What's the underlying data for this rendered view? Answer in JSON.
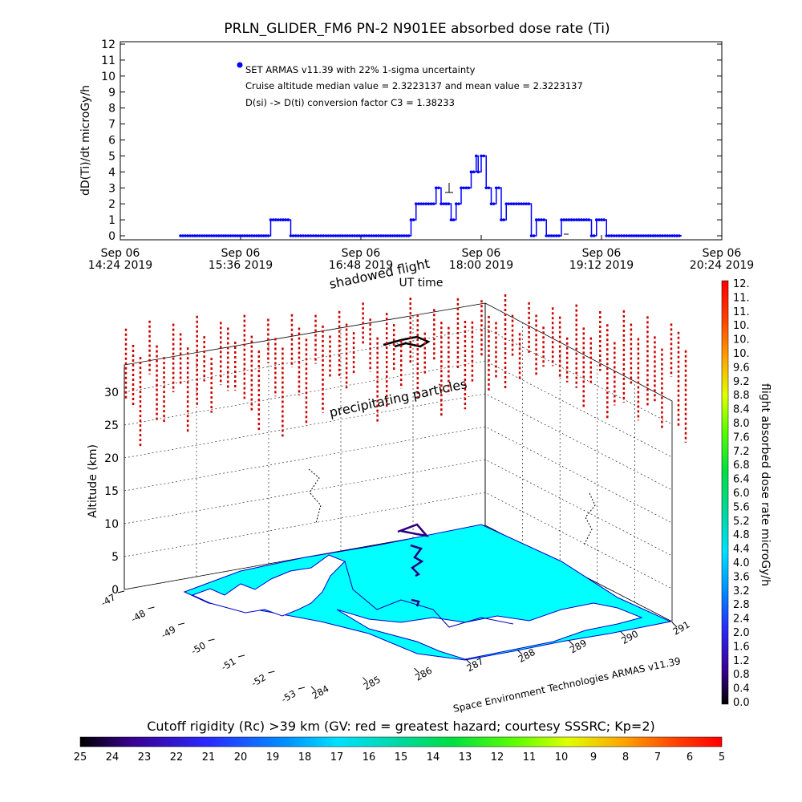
{
  "chart_data": [
    {
      "type": "line",
      "title": "PRLN_GLIDER_FM6 PN-2 N901EE absorbed dose rate (Ti)",
      "xlabel": "UT time",
      "ylabel": "dD(Ti)/dt microGy/h",
      "ylim": [
        0,
        12
      ],
      "y_ticks": [
        "0",
        "1",
        "2",
        "3",
        "4",
        "5",
        "6",
        "7",
        "8",
        "9",
        "10",
        "11",
        "12"
      ],
      "x_ticks": [
        {
          "line1": "Sep 06",
          "line2": "14:24 2019"
        },
        {
          "line1": "Sep 06",
          "line2": "15:36 2019"
        },
        {
          "line1": "Sep 06",
          "line2": "16:48 2019"
        },
        {
          "line1": "Sep 06",
          "line2": "18:00 2019"
        },
        {
          "line1": "Sep 06",
          "line2": "19:12 2019"
        },
        {
          "line1": "Sep 06",
          "line2": "20:24 2019"
        }
      ],
      "x_range_hours": [
        14.4,
        20.4
      ],
      "legend": [
        "SET ARMAS v11.39 with 22% 1-sigma uncertainty",
        "Cruise altitude median value = 2.3223137 and mean value = 2.3223137",
        "D(si) -> D(ti) conversion factor C3 = 1.38233"
      ],
      "series_color": "#0000ff",
      "series": [
        {
          "x_hours": [
            15.0,
            15.5,
            15.9,
            16.0,
            16.1,
            16.2,
            16.3,
            16.5,
            17.0,
            17.3,
            17.35,
            17.45,
            17.5,
            17.55,
            17.6,
            17.65,
            17.7,
            17.75,
            17.8,
            17.85,
            17.9,
            17.95,
            17.97,
            18.0,
            18.05,
            18.1,
            18.15,
            18.2,
            18.25,
            18.3,
            18.4,
            18.5,
            18.55,
            18.6,
            18.65,
            18.8,
            19.0,
            19.1,
            19.15,
            19.2,
            19.25,
            19.3,
            19.5,
            20.0
          ],
          "values": [
            0,
            0,
            1,
            1,
            0,
            0,
            0,
            0,
            0,
            1,
            2,
            2,
            2,
            3,
            2,
            2,
            1,
            2,
            3,
            3,
            4,
            5,
            4,
            5,
            3,
            2,
            3,
            1,
            2,
            2,
            2,
            0,
            1,
            1,
            0,
            1,
            1,
            0,
            1,
            1,
            0,
            0,
            0,
            0
          ]
        }
      ]
    },
    {
      "type": "scatter",
      "subtitle_labels": [
        "shadowed flight",
        "precipitating particles"
      ],
      "zlabel": "Altitude (km)",
      "z_ticks": [
        "0",
        "5",
        "10",
        "15",
        "20",
        "25",
        "30"
      ],
      "lat_ticks": [
        "-47",
        "-48",
        "-49",
        "-50",
        "-51",
        "-52",
        "-53"
      ],
      "lon_ticks": [
        "284",
        "285",
        "286",
        "287",
        "288",
        "289",
        "290",
        "291"
      ],
      "credit": "Space Environment Technologies ARMAS v11.39",
      "colorbar_right": {
        "label": "flight absorbed dose rate microGy/h",
        "ticks": [
          "12.",
          "11.",
          "11.",
          "10.",
          "10.",
          "10.",
          "9.6",
          "9.2",
          "8.8",
          "8.4",
          "8.0",
          "7.6",
          "7.2",
          "6.8",
          "6.4",
          "6.0",
          "5.6",
          "5.2",
          "4.8",
          "4.4",
          "4.0",
          "3.6",
          "3.2",
          "2.8",
          "2.4",
          "2.0",
          "1.6",
          "1.2",
          "0.8",
          "0.4",
          "0.0"
        ]
      },
      "colorbar_bottom": {
        "label": "Cutoff rigidity (Rc) >39 km (GV: red = greatest hazard; courtesy SSSRC; Kp=2)",
        "ticks": [
          "25",
          "24",
          "23",
          "22",
          "21",
          "20",
          "19",
          "18",
          "17",
          "16",
          "15",
          "14",
          "13",
          "12",
          "11",
          "10",
          "9",
          "8",
          "7",
          "6",
          "5"
        ]
      },
      "colors": {
        "ocean": "#00ffff",
        "land": "#ffffff",
        "coast": "#0000cc",
        "track": "#2a0080",
        "particles": "#cc0000"
      }
    }
  ]
}
